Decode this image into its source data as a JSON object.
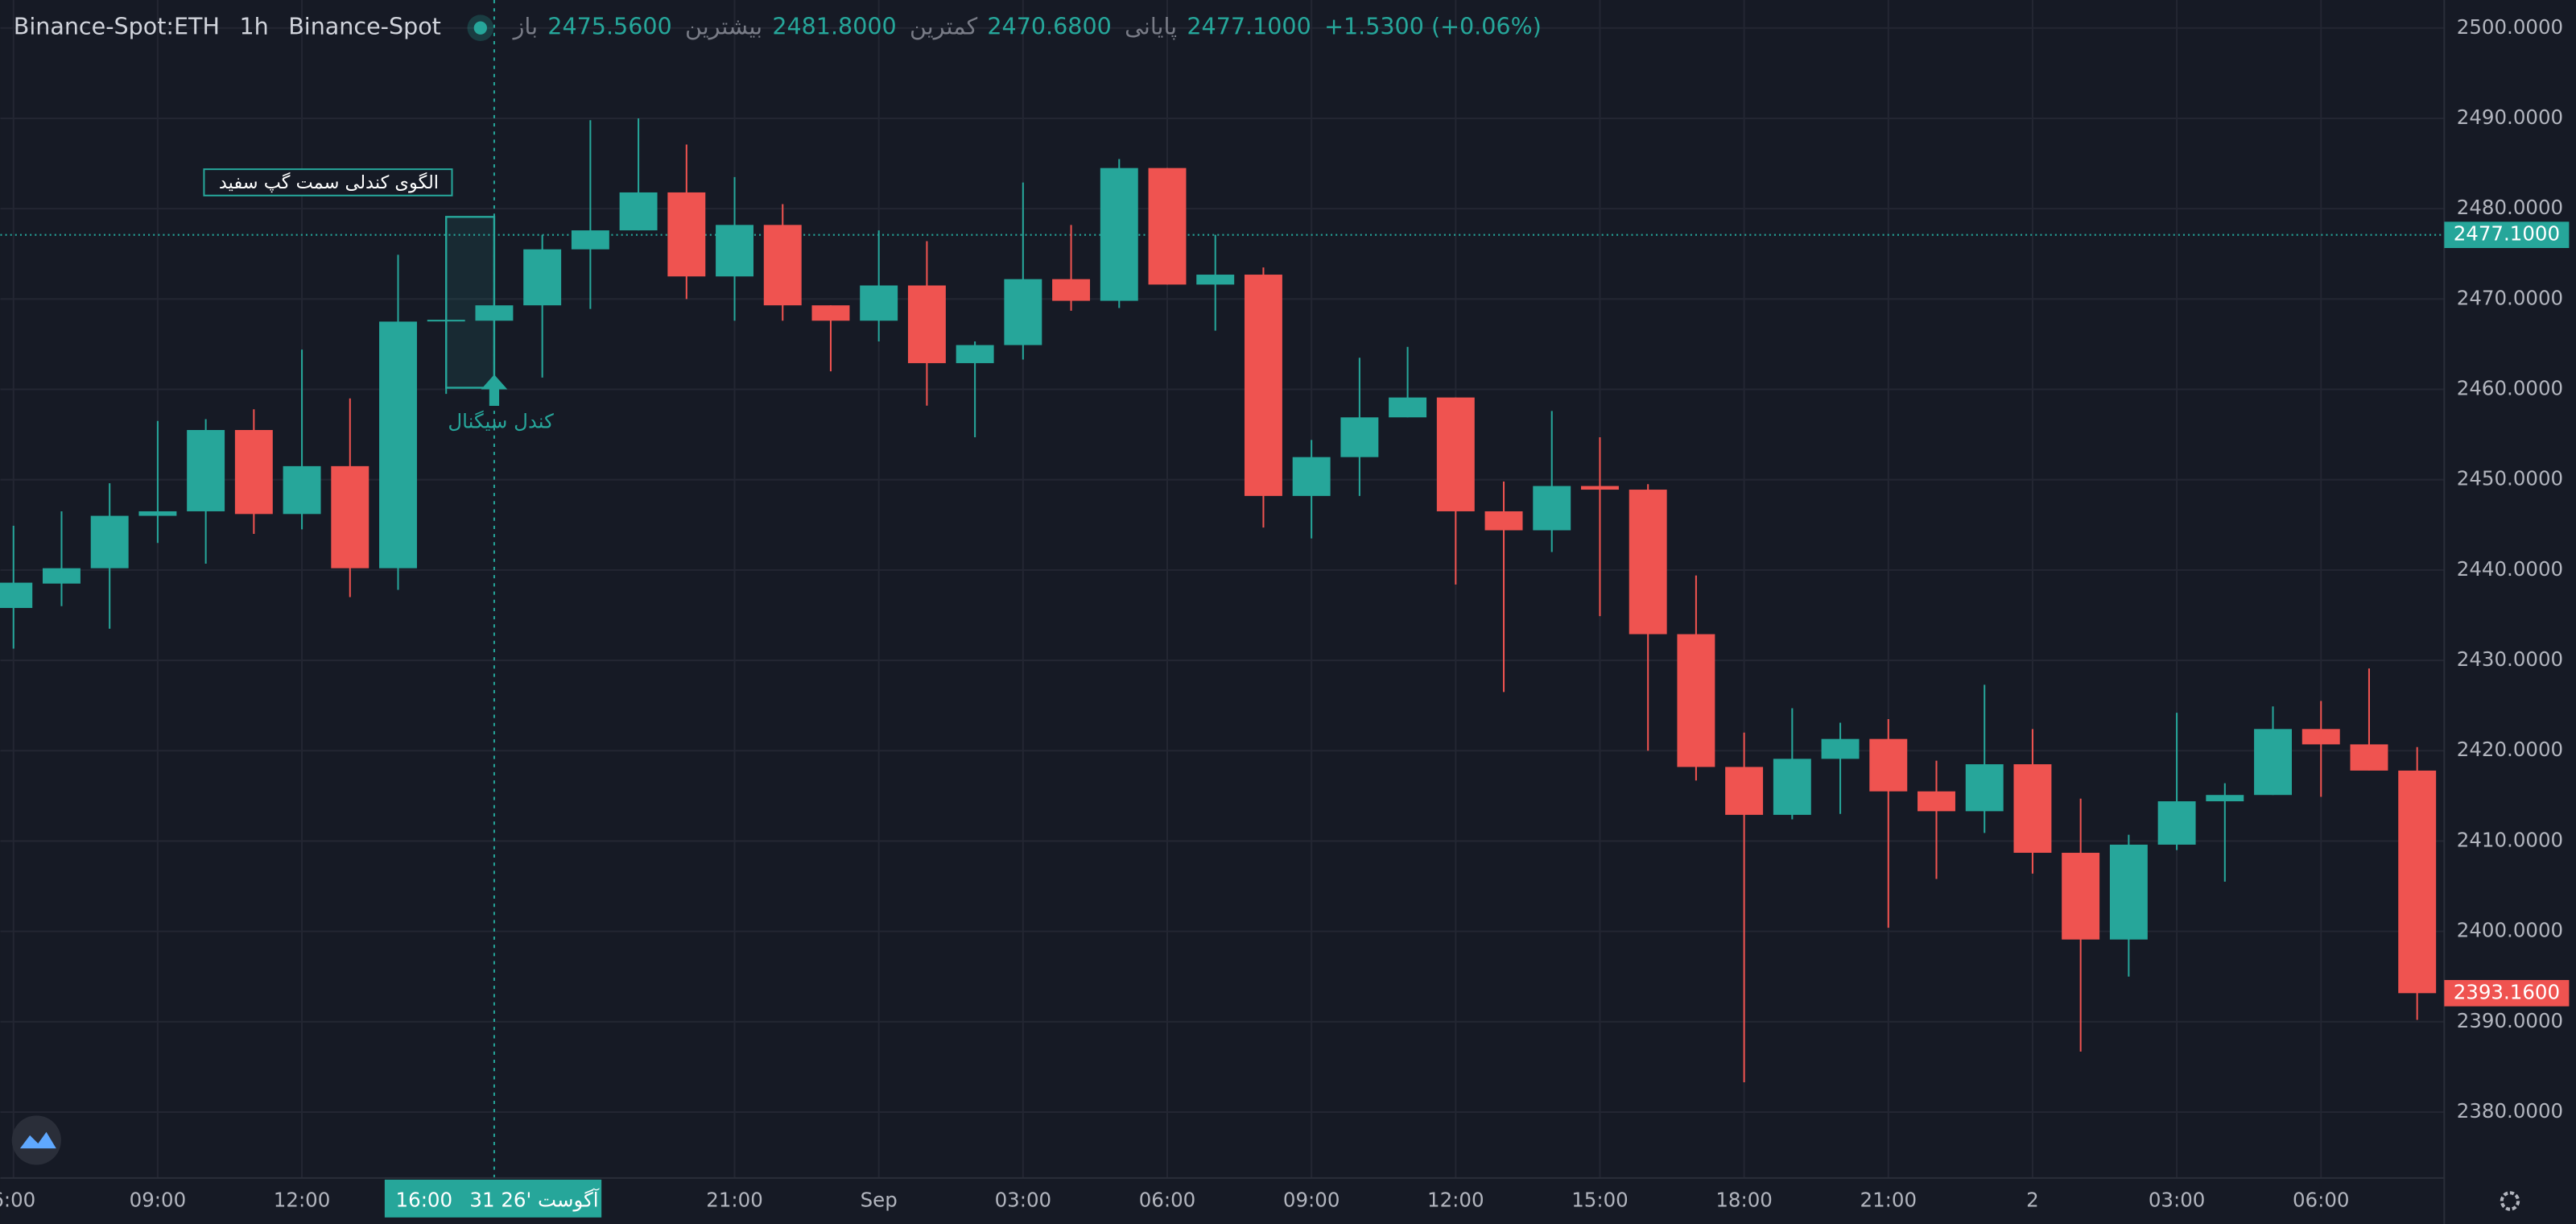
{
  "header": {
    "symbol": "Binance-Spot:ETH",
    "interval": "1h",
    "exchange": "Binance-Spot",
    "ohlc": [
      {
        "label": "باز",
        "value": "2475.5600"
      },
      {
        "label": "بیشترین",
        "value": "2481.8000"
      },
      {
        "label": "کمترین",
        "value": "2470.6800"
      },
      {
        "label": "پایانی",
        "value": "2477.1000"
      }
    ],
    "change": "+1.5300 (+0.06%)"
  },
  "chart_data": {
    "type": "candlestick",
    "categories": [
      "6:00",
      null,
      null,
      "09:00",
      null,
      null,
      "12:00",
      null,
      null,
      null,
      null,
      null,
      null,
      null,
      null,
      "21:00",
      null,
      null,
      "Sep",
      null,
      null,
      "03:00",
      null,
      null,
      "06:00",
      null,
      null,
      "09:00",
      null,
      null,
      "12:00",
      null,
      null,
      "15:00",
      null,
      null,
      "18:00",
      null,
      null,
      "21:00",
      null,
      null,
      "2",
      null,
      null,
      "03:00",
      null,
      null,
      "06:00",
      null,
      null
    ],
    "open": [
      2435.8,
      2438.5,
      2440.2,
      2446,
      2446.5,
      2455.5,
      2446.2,
      2451.5,
      2440.2,
      2467.6,
      2467.6,
      2469.3,
      2475.5,
      2477.6,
      2481.8,
      2472.5,
      2478.2,
      2469.3,
      2467.6,
      2471.5,
      2462.9,
      2464.9,
      2472.2,
      2469.8,
      2484.5,
      2471.6,
      2472.7,
      2448.2,
      2452.5,
      2456.9,
      2459.1,
      2446.5,
      2444.4,
      2449.3,
      2448.9,
      2432.9,
      2418.2,
      2412.9,
      2419.1,
      2421.3,
      2415.5,
      2413.3,
      2418.5,
      2408.7,
      2399.1,
      2409.6,
      2414.4,
      2415.1,
      2422.4,
      2420.7,
      2417.8
    ],
    "high": [
      2444.9,
      2446.5,
      2449.6,
      2456.5,
      2456.7,
      2457.8,
      2464.4,
      2459,
      2474.9,
      2471,
      2477.1,
      2477.1,
      2489.8,
      2490,
      2487.1,
      2483.5,
      2480.5,
      2469.3,
      2477.6,
      2476.4,
      2465.3,
      2482.9,
      2478.2,
      2485.5,
      2484.5,
      2477.1,
      2473.5,
      2454.4,
      2463.5,
      2464.7,
      2459.1,
      2449.8,
      2457.6,
      2454.7,
      2449.5,
      2439.4,
      2422,
      2424.7,
      2423.1,
      2423.5,
      2418.9,
      2427.3,
      2422.4,
      2414.7,
      2410.7,
      2424.2,
      2416.4,
      2424.9,
      2425.5,
      2429.1,
      2420.4
    ],
    "low": [
      2431.3,
      2436,
      2433.5,
      2443,
      2440.7,
      2444,
      2444.5,
      2437,
      2437.8,
      2459.5,
      2460.2,
      2461.3,
      2468.9,
      2477.6,
      2470,
      2467.6,
      2467.6,
      2462,
      2465.3,
      2458.2,
      2454.7,
      2463.3,
      2468.7,
      2469,
      2471.6,
      2466.5,
      2444.7,
      2443.5,
      2448.2,
      2456.9,
      2438.4,
      2426.5,
      2442,
      2434.9,
      2420,
      2416.7,
      2383.3,
      2412.4,
      2413,
      2400.4,
      2405.8,
      2410.9,
      2406.4,
      2386.7,
      2395,
      2409,
      2405.5,
      2415.1,
      2414.9,
      2417.8,
      2390.2
    ],
    "close": [
      2438.6,
      2440.2,
      2446,
      2446.5,
      2455.5,
      2446.2,
      2451.5,
      2440.2,
      2467.5,
      2467.7,
      2469.3,
      2475.5,
      2477.6,
      2481.8,
      2472.5,
      2478.2,
      2469.3,
      2467.6,
      2471.5,
      2462.9,
      2464.9,
      2472.2,
      2469.8,
      2484.5,
      2471.6,
      2472.7,
      2448.2,
      2452.5,
      2456.9,
      2459.1,
      2446.5,
      2444.4,
      2449.3,
      2448.9,
      2432.9,
      2418.2,
      2412.9,
      2419.1,
      2421.3,
      2415.5,
      2413.3,
      2418.5,
      2408.7,
      2399.1,
      2409.6,
      2414.4,
      2415.1,
      2422.4,
      2420.7,
      2417.8,
      2393.16
    ],
    "up_color": "#26a69a",
    "down_color": "#ef5350",
    "ylim": [
      2372.7,
      2503.1
    ],
    "yticks": [
      {
        "value": 2380,
        "label": "2380.0000"
      },
      {
        "value": 2390,
        "label": "2390.0000"
      },
      {
        "value": 2400,
        "label": "2400.0000"
      },
      {
        "value": 2410,
        "label": "2410.0000"
      },
      {
        "value": 2420,
        "label": "2420.0000"
      },
      {
        "value": 2430,
        "label": "2430.0000"
      },
      {
        "value": 2440,
        "label": "2440.0000"
      },
      {
        "value": 2450,
        "label": "2450.0000"
      },
      {
        "value": 2460,
        "label": "2460.0000"
      },
      {
        "value": 2470,
        "label": "2470.0000"
      },
      {
        "value": 2480,
        "label": "2480.0000"
      },
      {
        "value": 2490,
        "label": "2490.0000"
      },
      {
        "value": 2500,
        "label": "2500.0000"
      }
    ],
    "grid": true,
    "price_labels": [
      {
        "value": 2477.1,
        "label": "2477.1000",
        "color": "#26a69a"
      },
      {
        "value": 2393.16,
        "label": "2393.1600",
        "color": "#ef5350"
      }
    ],
    "crosshair": {
      "time": "16:00",
      "date": "31 آگوست '26"
    },
    "annotations": {
      "pattern": "الگوی کندلی سمت گپ سفید",
      "signal": "کندل سیگنال"
    }
  }
}
